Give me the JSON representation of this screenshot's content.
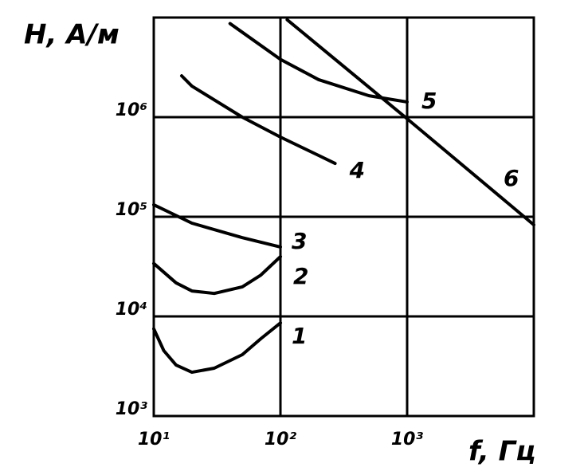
{
  "chart_data": {
    "type": "line",
    "x_label": "f, Гц",
    "y_label": "H, A/м",
    "xscale": "log",
    "yscale": "log",
    "grid": true,
    "xlim": [
      10,
      10000
    ],
    "ylim": [
      1000,
      10000000
    ],
    "xticks": [
      {
        "value": 10,
        "label": "10¹"
      },
      {
        "value": 100,
        "label": "10²"
      },
      {
        "value": 1000,
        "label": "10³"
      }
    ],
    "yticks": [
      {
        "value": 1000,
        "label": "10³"
      },
      {
        "value": 10000,
        "label": "10⁴"
      },
      {
        "value": 100000,
        "label": "10⁵"
      },
      {
        "value": 1000000,
        "label": "10⁶"
      }
    ],
    "series": [
      {
        "name": "1",
        "color": "#000000",
        "x": [
          10,
          12,
          15,
          20,
          30,
          50,
          70,
          100
        ],
        "values": [
          7500,
          4530,
          3250,
          2750,
          3020,
          4130,
          5970,
          8600
        ]
      },
      {
        "name": "2",
        "color": "#000000",
        "x": [
          10,
          15,
          20,
          30,
          50,
          70,
          100
        ],
        "values": [
          34000,
          21700,
          18000,
          17000,
          19800,
          26000,
          39800
        ]
      },
      {
        "name": "3",
        "color": "#000000",
        "x": [
          10,
          20,
          50,
          100
        ],
        "values": [
          132000,
          86300,
          61700,
          49700
        ]
      },
      {
        "name": "4",
        "color": "#000000",
        "x": [
          16.6,
          20,
          50,
          100,
          200,
          270
        ],
        "values": [
          2600000,
          2050000,
          1000000,
          631000,
          413000,
          343000
        ]
      },
      {
        "name": "5",
        "color": "#000000",
        "x": [
          40,
          100,
          200,
          500,
          1000
        ],
        "values": [
          8700000,
          3800000,
          2380000,
          1640000,
          1420000
        ]
      },
      {
        "name": "6",
        "color": "#000000",
        "x": [
          113,
          1000,
          10000
        ],
        "values": [
          9500000,
          964000,
          83000
        ]
      }
    ]
  }
}
